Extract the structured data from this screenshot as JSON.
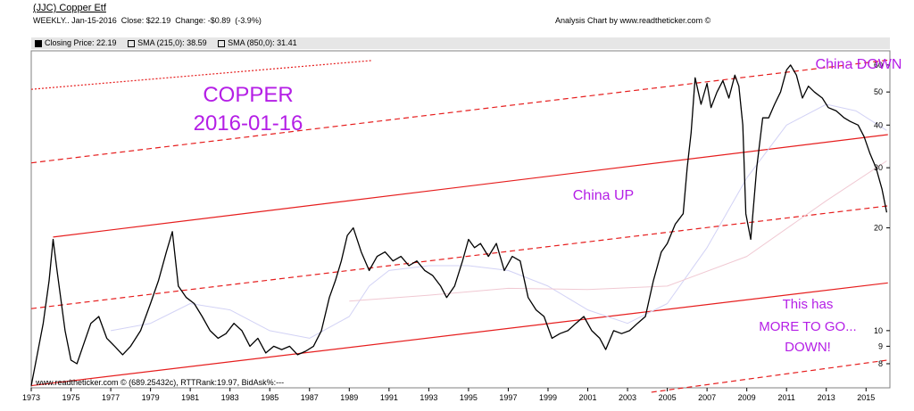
{
  "header": {
    "title": "(JJC) Copper Etf",
    "info": "WEEKLY.. Jan-15-2016  Close: $22.19  Change: -$0.89  (-3.9%)",
    "credit": "Analysis Chart by www.readtheticker.com ©"
  },
  "legend": [
    {
      "label": "Closing Price: 22.19",
      "style": "filled"
    },
    {
      "label": "SMA (215,0): 38.59",
      "style": "hollow"
    },
    {
      "label": "SMA (850,0): 31.41",
      "style": "hollow"
    }
  ],
  "chart_data": {
    "type": "line",
    "title": "(JJC) Copper Etf",
    "y_scale": "log",
    "ylim": [
      6.8,
      66
    ],
    "xlim": [
      1973.0,
      2016.2
    ],
    "x_ticks": [
      "1973",
      "1975",
      "1977",
      "1979",
      "1981",
      "1983",
      "1985",
      "1987",
      "1989",
      "1991",
      "1993",
      "1995",
      "1997",
      "1999",
      "2001",
      "2003",
      "2005",
      "2007",
      "2009",
      "2011",
      "2013",
      "2015"
    ],
    "y_ticks": [
      "60",
      "50",
      "40",
      "30",
      "20",
      "10",
      "9",
      "8"
    ],
    "grid": false,
    "legend_position": "top",
    "series": [
      {
        "name": "Closing Price",
        "color": "#000000",
        "x": [
          1973.0,
          1973.3,
          1973.6,
          1973.9,
          1974.1,
          1974.3,
          1974.7,
          1975.0,
          1975.3,
          1975.6,
          1976.0,
          1976.4,
          1976.8,
          1977.2,
          1977.6,
          1978.0,
          1978.5,
          1979.0,
          1979.4,
          1979.8,
          1980.1,
          1980.4,
          1980.8,
          1981.2,
          1981.6,
          1982.0,
          1982.4,
          1982.8,
          1983.2,
          1983.6,
          1984.0,
          1984.4,
          1984.8,
          1985.2,
          1985.6,
          1986.0,
          1986.4,
          1986.8,
          1987.2,
          1987.6,
          1988.0,
          1988.3,
          1988.6,
          1988.9,
          1989.2,
          1989.6,
          1990.0,
          1990.4,
          1990.8,
          1991.2,
          1991.6,
          1992.0,
          1992.4,
          1992.8,
          1993.2,
          1993.6,
          1993.9,
          1994.3,
          1994.7,
          1995.0,
          1995.3,
          1995.6,
          1996.0,
          1996.4,
          1996.8,
          1997.2,
          1997.6,
          1998.0,
          1998.4,
          1998.8,
          1999.2,
          1999.6,
          2000.0,
          2000.4,
          2000.8,
          2001.2,
          2001.6,
          2001.9,
          2002.3,
          2002.7,
          2003.1,
          2003.5,
          2003.9,
          2004.3,
          2004.7,
          2005.0,
          2005.4,
          2005.8,
          2006.0,
          2006.2,
          2006.4,
          2006.7,
          2007.0,
          2007.2,
          2007.5,
          2007.8,
          2008.1,
          2008.4,
          2008.6,
          2008.8,
          2008.95,
          2009.2,
          2009.5,
          2009.8,
          2010.1,
          2010.4,
          2010.7,
          2011.0,
          2011.2,
          2011.5,
          2011.8,
          2012.1,
          2012.4,
          2012.8,
          2013.1,
          2013.5,
          2013.9,
          2014.2,
          2014.6,
          2014.9,
          2015.2,
          2015.5,
          2015.8,
          2016.04
        ],
        "y": [
          6.9,
          8.5,
          10.5,
          14.0,
          18.5,
          15.0,
          10.0,
          8.2,
          8.0,
          9.0,
          10.5,
          11.0,
          9.5,
          9.0,
          8.5,
          9.0,
          10.0,
          12.0,
          14.0,
          17.0,
          19.5,
          13.5,
          12.5,
          12.0,
          11.0,
          10.0,
          9.5,
          9.8,
          10.5,
          10.0,
          9.0,
          9.5,
          8.6,
          9.0,
          8.8,
          9.0,
          8.5,
          8.7,
          9.0,
          10.0,
          12.5,
          14.0,
          16.0,
          19.0,
          20.0,
          17.0,
          15.0,
          16.5,
          17.0,
          16.0,
          16.5,
          15.5,
          16.0,
          15.0,
          14.5,
          13.5,
          12.5,
          13.5,
          16.0,
          18.5,
          17.5,
          18.0,
          16.5,
          18.0,
          15.0,
          16.5,
          16.0,
          12.5,
          11.5,
          11.0,
          9.5,
          9.8,
          10.0,
          10.5,
          11.0,
          10.0,
          9.5,
          8.8,
          10.0,
          9.8,
          10.0,
          10.5,
          11.0,
          14.0,
          17.0,
          18.0,
          20.5,
          22.0,
          30.0,
          38.0,
          55.0,
          46.0,
          53.0,
          45.0,
          50.0,
          54.0,
          48.0,
          56.0,
          52.0,
          40.0,
          22.0,
          18.5,
          30.0,
          42.0,
          42.0,
          46.0,
          50.0,
          58.0,
          60.0,
          56.0,
          48.0,
          52.0,
          50.0,
          48.0,
          45.0,
          44.0,
          42.0,
          41.0,
          40.0,
          37.0,
          33.0,
          30.0,
          26.0,
          22.19
        ]
      },
      {
        "name": "SMA (215,0)",
        "color": "#d2d2f5",
        "x": [
          1977.0,
          1979.0,
          1981.0,
          1983.0,
          1985.0,
          1987.0,
          1989.0,
          1990.0,
          1991.0,
          1993.0,
          1995.0,
          1997.0,
          1999.0,
          2001.0,
          2003.0,
          2005.0,
          2007.0,
          2009.0,
          2011.0,
          2013.0,
          2014.5,
          2016.04
        ],
        "y": [
          10.0,
          10.5,
          12.0,
          11.5,
          10.0,
          9.5,
          11.0,
          13.5,
          15.0,
          15.5,
          15.5,
          15.0,
          13.5,
          11.5,
          10.5,
          12.0,
          17.5,
          28.0,
          40.0,
          46.0,
          44.0,
          38.59
        ]
      },
      {
        "name": "SMA (850,0)",
        "color": "#f0c8d2",
        "x": [
          1989.0,
          1993.0,
          1997.0,
          2001.0,
          2005.0,
          2009.0,
          2013.0,
          2016.04
        ],
        "y": [
          12.2,
          12.7,
          13.3,
          13.2,
          13.5,
          16.5,
          24.0,
          31.41
        ]
      }
    ],
    "trend_lines": [
      {
        "style": "solid",
        "x": [
          1974.1,
          2016.1
        ],
        "y": [
          18.8,
          37.5
        ]
      },
      {
        "style": "solid",
        "x": [
          1973.0,
          2016.1
        ],
        "y": [
          6.9,
          13.8
        ]
      },
      {
        "style": "dashed",
        "x": [
          1973.0,
          2016.1
        ],
        "y": [
          31.0,
          62.0
        ]
      },
      {
        "style": "dashed",
        "x": [
          1973.0,
          2016.1
        ],
        "y": [
          11.6,
          23.2
        ]
      },
      {
        "style": "dashed",
        "x": [
          2004.2,
          2016.1
        ],
        "y": [
          6.6,
          8.2
        ]
      },
      {
        "style": "dotted",
        "x": [
          1973.0,
          1990.1
        ],
        "y": [
          50.9,
          61.8
        ]
      }
    ],
    "annotations": {
      "title_line1": "COPPER",
      "title_line2": "2016-01-16",
      "china_up": "China UP",
      "china_down": "China DOWN",
      "note_line1": "This has",
      "note_line2": "MORE TO GO...",
      "note_line3": "DOWN!"
    },
    "footer_left": "www.readtheticker.com © (689.25432c), RTTRank:19.97, BidAsk%:---"
  },
  "colors": {
    "price": "#000000",
    "trend": "#e61e1e",
    "annotation": "#b41ee6",
    "legend_bar": "#e6e6e6"
  }
}
